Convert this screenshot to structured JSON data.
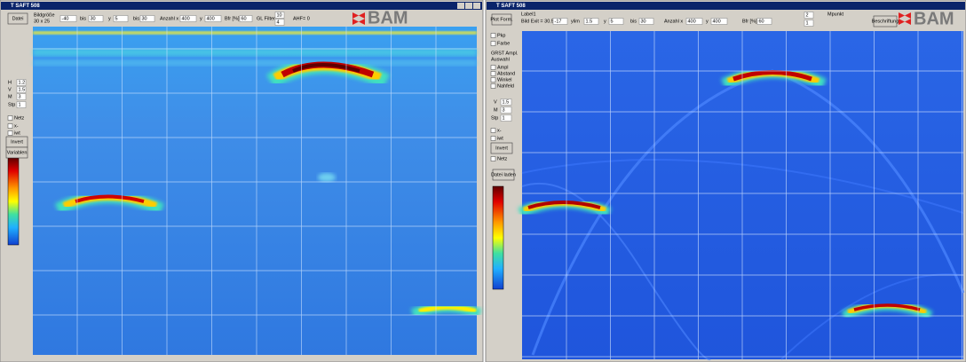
{
  "left": {
    "title": "T SAFT 508",
    "logo": "BAM",
    "toolbar": [
      "Datei",
      "Bildgröße",
      "30 x 25",
      "-40",
      "bis",
      "30",
      "y",
      "5",
      "bis",
      "30",
      "Anzahl x",
      "400",
      "y",
      "400",
      "Bfr [%]",
      "60",
      "GL Filter",
      "10",
      "4",
      "AHF= 0"
    ],
    "side": [
      "H",
      "1.2",
      "V",
      "1.5",
      "M",
      "3",
      "Stp",
      "1",
      "Netz",
      "x-",
      "iwt",
      "Invert",
      "Variablen"
    ]
  },
  "right": {
    "title": "T SAFT 508",
    "logo": "BAM",
    "toolbar": [
      "Plot Form.",
      "Label1",
      "Bild Exit = 30.5",
      "-17",
      "ylim",
      "1.5",
      "y",
      "5",
      "bis",
      "30",
      "Anzahl x",
      "400",
      "y",
      "400",
      "Bfr [%]",
      "60",
      "2",
      "1",
      "Mpunkt",
      "Beschriftung"
    ],
    "side": [
      "Pkp",
      "Farbe",
      "GRST Ampl.",
      "Auswahl",
      "Ampl",
      "Abstand",
      "Winkel",
      "Nahfeld",
      "V",
      "1.5",
      "M",
      "3",
      "Stp",
      "1",
      "x-",
      "iwt",
      "Invert",
      "Netz",
      "Datei laden"
    ]
  }
}
